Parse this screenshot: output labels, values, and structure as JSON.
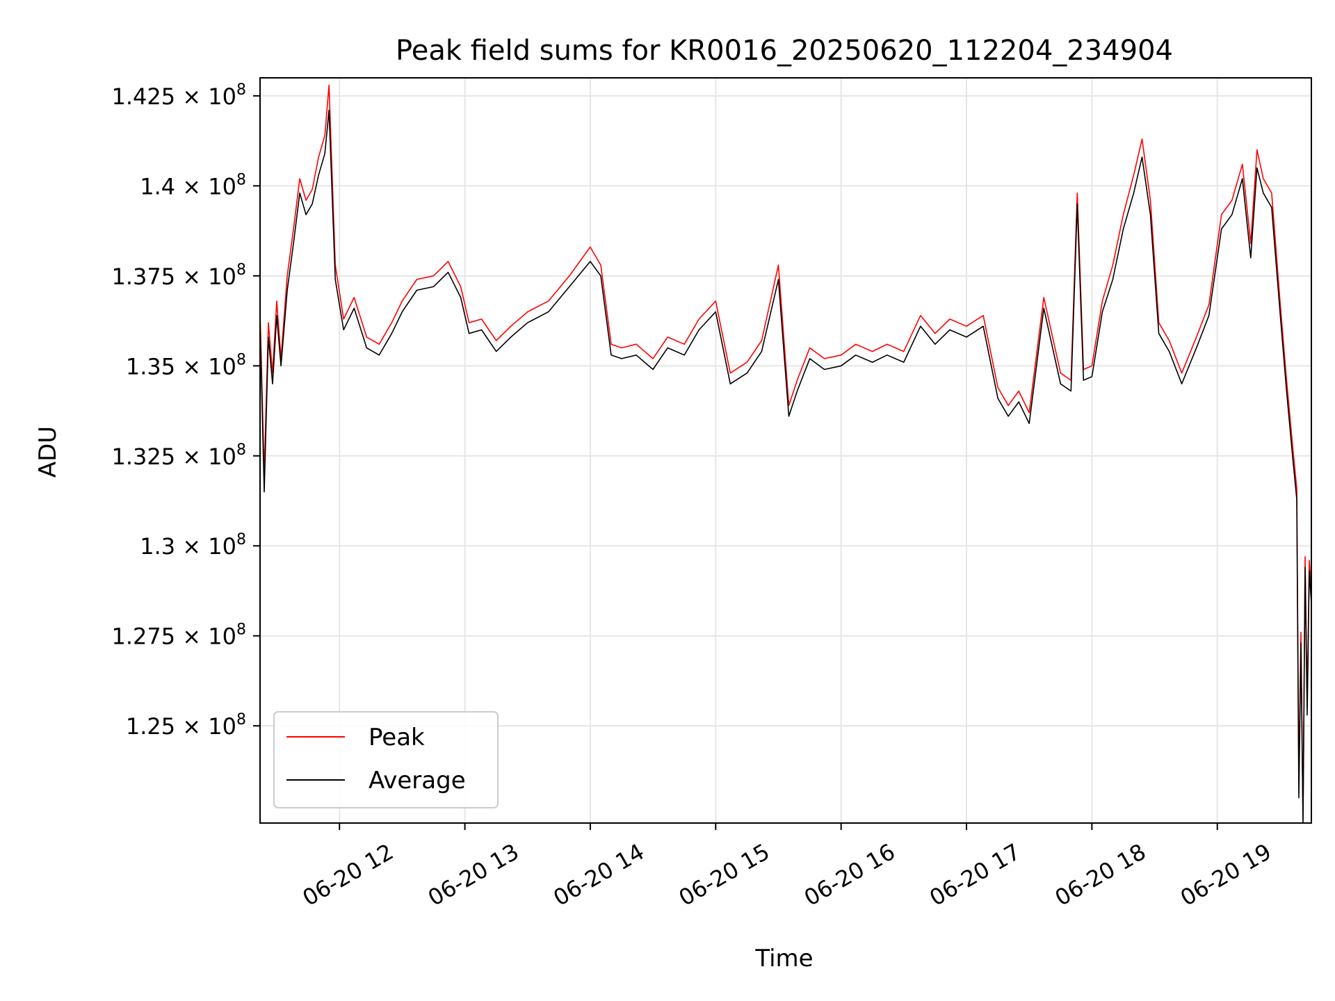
{
  "chart_data": {
    "type": "line",
    "title": "Peak field sums for KR0016_20250620_112204_234904",
    "xlabel": "Time",
    "ylabel": "ADU",
    "x_tick_labels": [
      "06-20 12",
      "06-20 13",
      "06-20 14",
      "06-20 15",
      "06-20 16",
      "06-20 17",
      "06-20 18",
      "06-20 19"
    ],
    "x_tick_times": [
      "2025-06-20 12:00",
      "2025-06-20 13:00",
      "2025-06-20 14:00",
      "2025-06-20 15:00",
      "2025-06-20 16:00",
      "2025-06-20 17:00",
      "2025-06-20 18:00",
      "2025-06-20 19:00"
    ],
    "y_ticks": [
      {
        "value": 125000000,
        "mantissa": "1.25",
        "exp": "8"
      },
      {
        "value": 127500000,
        "mantissa": "1.275",
        "exp": "8"
      },
      {
        "value": 130000000,
        "mantissa": "1.3",
        "exp": "8"
      },
      {
        "value": 132500000,
        "mantissa": "1.325",
        "exp": "8"
      },
      {
        "value": 135000000,
        "mantissa": "1.35",
        "exp": "8"
      },
      {
        "value": 137500000,
        "mantissa": "1.375",
        "exp": "8"
      },
      {
        "value": 140000000,
        "mantissa": "1.4",
        "exp": "8"
      },
      {
        "value": 142500000,
        "mantissa": "1.425",
        "exp": "8"
      }
    ],
    "xlim": [
      "2025-06-20 11:22",
      "2025-06-20 19:45"
    ],
    "ylim": [
      122300000,
      143000000
    ],
    "grid": true,
    "legend_position": "lower-left",
    "series": [
      {
        "name": "Peak",
        "color": "#ff0000",
        "x": [
          "2025-06-20 11:22",
          "2025-06-20 11:24",
          "2025-06-20 11:26",
          "2025-06-20 11:28",
          "2025-06-20 11:30",
          "2025-06-20 11:32",
          "2025-06-20 11:35",
          "2025-06-20 11:38",
          "2025-06-20 11:41",
          "2025-06-20 11:44",
          "2025-06-20 11:47",
          "2025-06-20 11:50",
          "2025-06-20 11:53",
          "2025-06-20 11:55",
          "2025-06-20 11:58",
          "2025-06-20 12:02",
          "2025-06-20 12:07",
          "2025-06-20 12:13",
          "2025-06-20 12:19",
          "2025-06-20 12:25",
          "2025-06-20 12:30",
          "2025-06-20 12:37",
          "2025-06-20 12:45",
          "2025-06-20 12:52",
          "2025-06-20 12:58",
          "2025-06-20 13:02",
          "2025-06-20 13:08",
          "2025-06-20 13:15",
          "2025-06-20 13:22",
          "2025-06-20 13:30",
          "2025-06-20 13:40",
          "2025-06-20 13:50",
          "2025-06-20 14:00",
          "2025-06-20 14:05",
          "2025-06-20 14:10",
          "2025-06-20 14:15",
          "2025-06-20 14:22",
          "2025-06-20 14:30",
          "2025-06-20 14:37",
          "2025-06-20 14:45",
          "2025-06-20 14:52",
          "2025-06-20 15:00",
          "2025-06-20 15:07",
          "2025-06-20 15:15",
          "2025-06-20 15:22",
          "2025-06-20 15:30",
          "2025-06-20 15:35",
          "2025-06-20 15:39",
          "2025-06-20 15:45",
          "2025-06-20 15:52",
          "2025-06-20 16:00",
          "2025-06-20 16:07",
          "2025-06-20 16:15",
          "2025-06-20 16:22",
          "2025-06-20 16:30",
          "2025-06-20 16:38",
          "2025-06-20 16:45",
          "2025-06-20 16:52",
          "2025-06-20 17:00",
          "2025-06-20 17:08",
          "2025-06-20 17:15",
          "2025-06-20 17:20",
          "2025-06-20 17:25",
          "2025-06-20 17:30",
          "2025-06-20 17:37",
          "2025-06-20 17:45",
          "2025-06-20 17:50",
          "2025-06-20 17:53",
          "2025-06-20 17:56",
          "2025-06-20 18:00",
          "2025-06-20 18:05",
          "2025-06-20 18:10",
          "2025-06-20 18:15",
          "2025-06-20 18:20",
          "2025-06-20 18:24",
          "2025-06-20 18:28",
          "2025-06-20 18:32",
          "2025-06-20 18:37",
          "2025-06-20 18:43",
          "2025-06-20 18:50",
          "2025-06-20 18:56",
          "2025-06-20 19:02",
          "2025-06-20 19:07",
          "2025-06-20 19:12",
          "2025-06-20 19:16",
          "2025-06-20 19:19",
          "2025-06-20 19:22",
          "2025-06-20 19:26",
          "2025-06-20 19:30",
          "2025-06-20 19:33",
          "2025-06-20 19:36",
          "2025-06-20 19:38",
          "2025-06-20 19:39",
          "2025-06-20 19:40",
          "2025-06-20 19:41",
          "2025-06-20 19:42",
          "2025-06-20 19:43",
          "2025-06-20 19:44",
          "2025-06-20 19:45"
        ],
        "y": [
          136500000,
          132000000,
          136200000,
          134800000,
          136800000,
          135200000,
          137500000,
          138800000,
          140200000,
          139600000,
          139900000,
          140800000,
          141400000,
          142800000,
          137800000,
          136300000,
          136900000,
          135800000,
          135600000,
          136200000,
          136800000,
          137400000,
          137500000,
          137900000,
          137200000,
          136200000,
          136300000,
          135700000,
          136100000,
          136500000,
          136800000,
          137500000,
          138300000,
          137800000,
          135600000,
          135500000,
          135600000,
          135200000,
          135800000,
          135600000,
          136300000,
          136800000,
          134800000,
          135100000,
          135700000,
          137800000,
          133900000,
          134600000,
          135500000,
          135200000,
          135300000,
          135600000,
          135400000,
          135600000,
          135400000,
          136400000,
          135900000,
          136300000,
          136100000,
          136400000,
          134400000,
          133900000,
          134300000,
          133700000,
          136900000,
          134800000,
          134600000,
          139800000,
          134900000,
          135000000,
          136800000,
          137800000,
          139200000,
          140300000,
          141300000,
          139600000,
          136200000,
          135700000,
          134800000,
          135800000,
          136700000,
          139200000,
          139600000,
          140600000,
          138400000,
          141000000,
          140200000,
          139800000,
          136800000,
          134700000,
          132800000,
          131600000,
          123500000,
          127600000,
          122400000,
          129700000,
          125600000,
          129600000,
          128700000
        ]
      },
      {
        "name": "Average",
        "color": "#000000",
        "x": [
          "2025-06-20 11:22",
          "2025-06-20 11:24",
          "2025-06-20 11:26",
          "2025-06-20 11:28",
          "2025-06-20 11:30",
          "2025-06-20 11:32",
          "2025-06-20 11:35",
          "2025-06-20 11:38",
          "2025-06-20 11:41",
          "2025-06-20 11:44",
          "2025-06-20 11:47",
          "2025-06-20 11:50",
          "2025-06-20 11:53",
          "2025-06-20 11:55",
          "2025-06-20 11:58",
          "2025-06-20 12:02",
          "2025-06-20 12:07",
          "2025-06-20 12:13",
          "2025-06-20 12:19",
          "2025-06-20 12:25",
          "2025-06-20 12:30",
          "2025-06-20 12:37",
          "2025-06-20 12:45",
          "2025-06-20 12:52",
          "2025-06-20 12:58",
          "2025-06-20 13:02",
          "2025-06-20 13:08",
          "2025-06-20 13:15",
          "2025-06-20 13:22",
          "2025-06-20 13:30",
          "2025-06-20 13:40",
          "2025-06-20 13:50",
          "2025-06-20 14:00",
          "2025-06-20 14:05",
          "2025-06-20 14:10",
          "2025-06-20 14:15",
          "2025-06-20 14:22",
          "2025-06-20 14:30",
          "2025-06-20 14:37",
          "2025-06-20 14:45",
          "2025-06-20 14:52",
          "2025-06-20 15:00",
          "2025-06-20 15:07",
          "2025-06-20 15:15",
          "2025-06-20 15:22",
          "2025-06-20 15:30",
          "2025-06-20 15:35",
          "2025-06-20 15:39",
          "2025-06-20 15:45",
          "2025-06-20 15:52",
          "2025-06-20 16:00",
          "2025-06-20 16:07",
          "2025-06-20 16:15",
          "2025-06-20 16:22",
          "2025-06-20 16:30",
          "2025-06-20 16:38",
          "2025-06-20 16:45",
          "2025-06-20 16:52",
          "2025-06-20 17:00",
          "2025-06-20 17:08",
          "2025-06-20 17:15",
          "2025-06-20 17:20",
          "2025-06-20 17:25",
          "2025-06-20 17:30",
          "2025-06-20 17:37",
          "2025-06-20 17:45",
          "2025-06-20 17:50",
          "2025-06-20 17:53",
          "2025-06-20 17:56",
          "2025-06-20 18:00",
          "2025-06-20 18:05",
          "2025-06-20 18:10",
          "2025-06-20 18:15",
          "2025-06-20 18:20",
          "2025-06-20 18:24",
          "2025-06-20 18:28",
          "2025-06-20 18:32",
          "2025-06-20 18:37",
          "2025-06-20 18:43",
          "2025-06-20 18:50",
          "2025-06-20 18:56",
          "2025-06-20 19:02",
          "2025-06-20 19:07",
          "2025-06-20 19:12",
          "2025-06-20 19:16",
          "2025-06-20 19:19",
          "2025-06-20 19:22",
          "2025-06-20 19:26",
          "2025-06-20 19:30",
          "2025-06-20 19:33",
          "2025-06-20 19:36",
          "2025-06-20 19:38",
          "2025-06-20 19:39",
          "2025-06-20 19:40",
          "2025-06-20 19:41",
          "2025-06-20 19:42",
          "2025-06-20 19:43",
          "2025-06-20 19:44",
          "2025-06-20 19:45"
        ],
        "y": [
          136200000,
          131500000,
          135800000,
          134500000,
          136400000,
          135000000,
          137100000,
          138400000,
          139800000,
          139200000,
          139500000,
          140300000,
          140900000,
          142100000,
          137400000,
          136000000,
          136600000,
          135500000,
          135300000,
          135900000,
          136500000,
          137100000,
          137200000,
          137600000,
          136900000,
          135900000,
          136000000,
          135400000,
          135800000,
          136200000,
          136500000,
          137200000,
          137900000,
          137500000,
          135300000,
          135200000,
          135300000,
          134900000,
          135500000,
          135300000,
          136000000,
          136500000,
          134500000,
          134800000,
          135400000,
          137400000,
          133600000,
          134300000,
          135200000,
          134900000,
          135000000,
          135300000,
          135100000,
          135300000,
          135100000,
          136100000,
          135600000,
          136000000,
          135800000,
          136100000,
          134100000,
          133600000,
          134000000,
          133400000,
          136600000,
          134500000,
          134300000,
          139500000,
          134600000,
          134700000,
          136500000,
          137400000,
          138800000,
          139800000,
          140800000,
          139200000,
          135900000,
          135400000,
          134500000,
          135500000,
          136400000,
          138800000,
          139200000,
          140200000,
          138000000,
          140500000,
          139800000,
          139400000,
          136500000,
          134400000,
          132500000,
          131300000,
          123000000,
          127300000,
          122300000,
          129400000,
          125300000,
          129300000,
          128400000
        ]
      }
    ]
  }
}
